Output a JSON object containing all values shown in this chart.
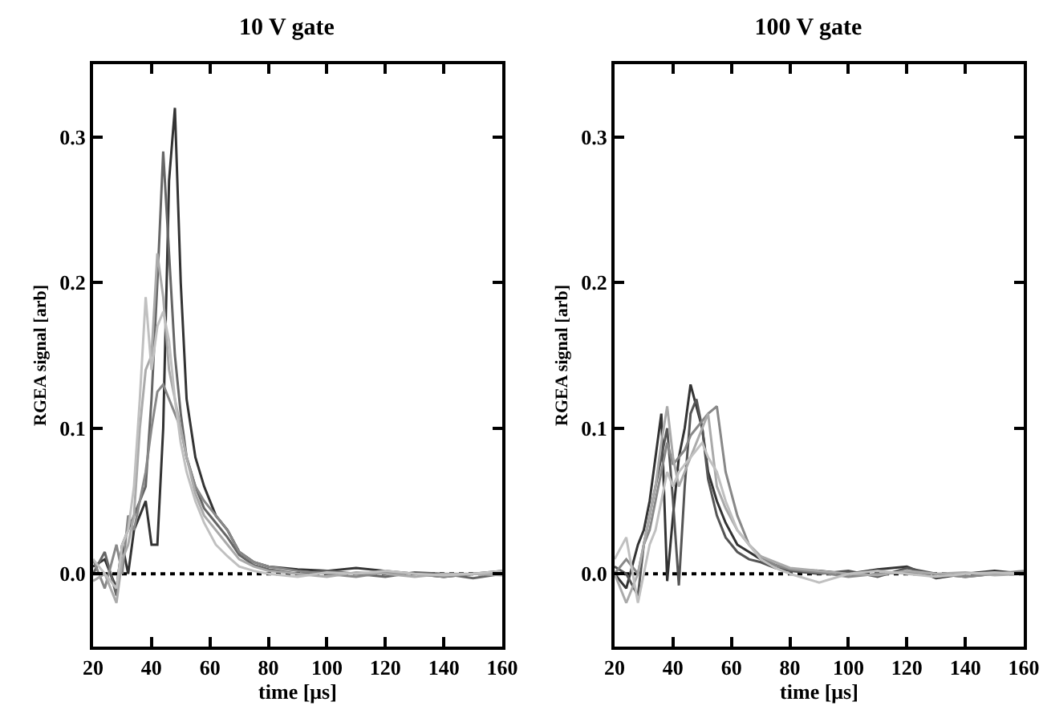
{
  "chart_data": [
    {
      "type": "line",
      "title": "10 V gate",
      "xlabel": "time [μs]",
      "ylabel": "RGEA signal [arb]",
      "xlim": [
        20,
        160
      ],
      "ylim": [
        -0.05,
        0.35
      ],
      "xticks": [
        20,
        40,
        60,
        80,
        100,
        120,
        140,
        160
      ],
      "yticks": [
        {
          "value": 0,
          "label": "0.0"
        },
        0.1,
        0.2,
        0.3
      ],
      "grid": false,
      "ref_lines": [
        {
          "axis": "y",
          "value": 0,
          "color": "#000000",
          "line_style": "dotted"
        }
      ],
      "x": [
        20,
        24,
        28,
        30,
        32,
        34,
        36,
        38,
        40,
        42,
        44,
        46,
        48,
        50,
        52,
        55,
        58,
        62,
        66,
        70,
        75,
        80,
        90,
        100,
        110,
        120,
        130,
        140,
        150,
        160
      ],
      "series": [
        {
          "color": "#333333",
          "values": [
            0.005,
            0.01,
            -0.01,
            0.02,
            0.0,
            0.03,
            0.04,
            0.05,
            0.02,
            0.02,
            0.1,
            0.27,
            0.32,
            0.2,
            0.12,
            0.08,
            0.06,
            0.04,
            0.03,
            0.015,
            0.008,
            0.005,
            0.003,
            0.002,
            0.004,
            0.002,
            0.0,
            -0.002,
            0.0,
            0.002
          ]
        },
        {
          "color": "#666666",
          "values": [
            0.0,
            0.015,
            -0.015,
            0.02,
            0.03,
            0.04,
            0.05,
            0.06,
            0.12,
            0.2,
            0.29,
            0.22,
            0.15,
            0.11,
            0.08,
            0.06,
            0.045,
            0.035,
            0.025,
            0.013,
            0.006,
            0.003,
            0.0,
            0.002,
            0.0,
            -0.002,
            0.001,
            0.0,
            -0.003,
            0.0
          ]
        },
        {
          "color": "#888888",
          "values": [
            0.01,
            -0.01,
            0.02,
            0.0,
            0.04,
            0.03,
            0.05,
            0.07,
            0.1,
            0.125,
            0.13,
            0.12,
            0.11,
            0.1,
            0.08,
            0.06,
            0.05,
            0.04,
            0.03,
            0.015,
            0.008,
            0.005,
            0.002,
            0.0,
            -0.002,
            0.001,
            0.0,
            -0.002,
            0.0,
            0.001
          ]
        },
        {
          "color": "#aaaaaa",
          "values": [
            -0.005,
            0.0,
            -0.02,
            0.01,
            0.02,
            0.04,
            0.1,
            0.14,
            0.15,
            0.22,
            0.19,
            0.14,
            0.12,
            0.1,
            0.08,
            0.055,
            0.04,
            0.03,
            0.02,
            0.01,
            0.005,
            0.002,
            0.0,
            -0.002,
            0.001,
            0.0,
            -0.002,
            0.0,
            0.0,
            -0.001
          ]
        },
        {
          "color": "#c0c0c0",
          "values": [
            0.01,
            0.0,
            -0.01,
            0.02,
            0.03,
            0.06,
            0.12,
            0.19,
            0.14,
            0.17,
            0.18,
            0.16,
            0.12,
            0.09,
            0.07,
            0.05,
            0.035,
            0.02,
            0.012,
            0.005,
            0.002,
            0.0,
            -0.002,
            0.001,
            0.0,
            0.002,
            0.0,
            -0.001,
            0.0,
            0.002
          ]
        }
      ]
    },
    {
      "type": "line",
      "title": "100 V gate",
      "xlabel": "time [μs]",
      "ylabel": "RGEA signal [arb]",
      "xlim": [
        20,
        160
      ],
      "ylim": [
        -0.05,
        0.35
      ],
      "xticks": [
        20,
        40,
        60,
        80,
        100,
        120,
        140,
        160
      ],
      "yticks": [
        {
          "value": 0,
          "label": "0.0"
        },
        0.1,
        0.2,
        0.3
      ],
      "grid": false,
      "ref_lines": [
        {
          "axis": "y",
          "value": 0,
          "color": "#000000",
          "line_style": "dotted"
        }
      ],
      "x": [
        20,
        24,
        28,
        30,
        32,
        34,
        36,
        38,
        40,
        42,
        44,
        46,
        48,
        50,
        52,
        55,
        58,
        62,
        66,
        70,
        75,
        80,
        90,
        100,
        110,
        120,
        130,
        140,
        150,
        160
      ],
      "series": [
        {
          "color": "#333333",
          "values": [
            0.0,
            -0.01,
            0.02,
            0.03,
            0.05,
            0.08,
            0.11,
            -0.005,
            0.04,
            0.08,
            0.1,
            0.13,
            0.115,
            0.1,
            0.07,
            0.05,
            0.035,
            0.02,
            0.015,
            0.01,
            0.006,
            0.003,
            0.002,
            0.0,
            0.003,
            0.005,
            -0.003,
            0.0,
            0.002,
            0.0
          ]
        },
        {
          "color": "#555555",
          "values": [
            0.005,
            0.0,
            -0.015,
            0.02,
            0.04,
            0.06,
            0.08,
            0.1,
            0.05,
            -0.008,
            0.06,
            0.11,
            0.12,
            0.1,
            0.065,
            0.04,
            0.025,
            0.015,
            0.01,
            0.008,
            0.004,
            0.002,
            0.0,
            0.002,
            -0.002,
            0.004,
            0.0,
            -0.002,
            0.0,
            0.001
          ]
        },
        {
          "color": "#888888",
          "values": [
            0.0,
            0.01,
            0.0,
            0.02,
            0.03,
            0.05,
            0.07,
            0.09,
            0.075,
            0.08,
            0.085,
            0.095,
            0.1,
            0.105,
            0.11,
            0.115,
            0.07,
            0.04,
            0.02,
            0.012,
            0.006,
            0.003,
            0.001,
            -0.002,
            0.0,
            0.001,
            0.0,
            -0.002,
            0.0,
            0.002
          ]
        },
        {
          "color": "#aaaaaa",
          "values": [
            0.0,
            -0.02,
            0.0,
            0.02,
            0.04,
            0.06,
            0.09,
            0.115,
            0.08,
            0.06,
            0.07,
            0.08,
            0.09,
            0.1,
            0.11,
            0.06,
            0.045,
            0.03,
            0.02,
            0.012,
            0.008,
            0.004,
            0.002,
            0.0,
            -0.001,
            0.002,
            0.0,
            0.001,
            -0.001,
            0.0
          ]
        },
        {
          "color": "#c0c0c0",
          "values": [
            0.01,
            0.025,
            -0.02,
            0.0,
            0.02,
            0.03,
            0.05,
            0.07,
            0.06,
            0.07,
            0.075,
            0.08,
            0.085,
            0.09,
            0.08,
            0.07,
            0.05,
            0.03,
            0.02,
            0.01,
            0.004,
            0.0,
            -0.006,
            0.0,
            0.002,
            0.0,
            -0.002,
            0.0,
            0.001,
            0.0
          ]
        }
      ]
    }
  ]
}
